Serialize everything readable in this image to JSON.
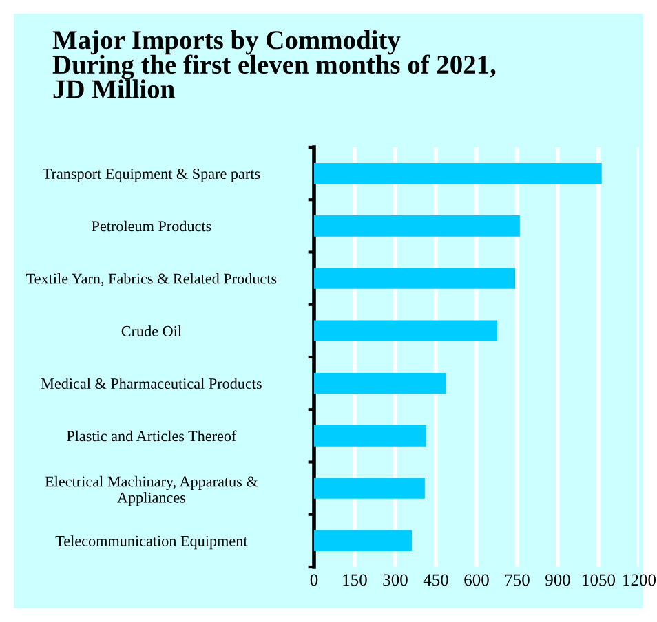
{
  "chart_data": {
    "type": "bar",
    "orientation": "horizontal",
    "title": "Major Imports by Commodity\nDuring the first eleven months of 2021,\nJD Million",
    "categories": [
      "Transport Equipment & Spare parts",
      "Petroleum Products",
      "Textile Yarn, Fabrics & Related Products",
      "Crude Oil",
      "Medical & Pharmaceutical Products",
      "Plastic and Articles Thereof",
      "Electrical Machinary, Apparatus &\nAppliances",
      "Telecommunication Equipment"
    ],
    "values": [
      1062,
      760,
      743,
      677,
      487,
      414,
      409,
      361
    ],
    "color": "#00ccff",
    "xlim": [
      0,
      1200
    ],
    "xticks": [
      0,
      150,
      300,
      450,
      600,
      750,
      900,
      1050,
      1200
    ],
    "grid": "x"
  }
}
